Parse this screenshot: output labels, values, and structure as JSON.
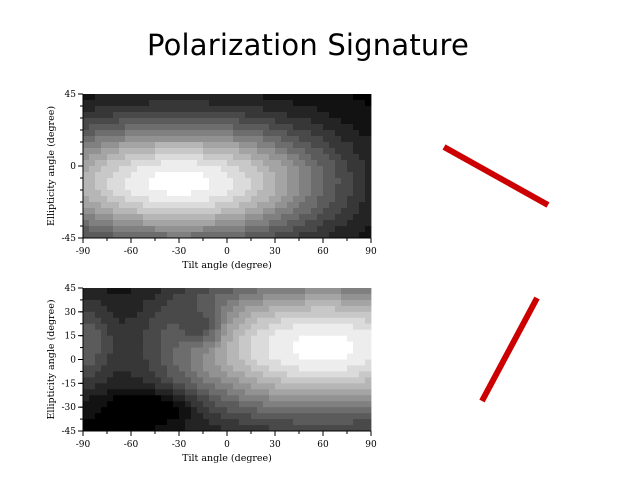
{
  "slide": {
    "title": "Polarization Signature"
  },
  "colors": {
    "line_accent": "#cc0000",
    "axis": "#000000",
    "background": "#ffffff"
  },
  "chart_data": [
    {
      "type": "heatmap",
      "title": "",
      "xlabel": "Tilt angle (degree)",
      "ylabel": "Ellipticity angle (degree)",
      "xlim": [
        -90,
        90
      ],
      "ylim": [
        -45,
        45
      ],
      "xticks": [
        "-90",
        "-60",
        "-30",
        "0",
        "30",
        "60",
        "90"
      ],
      "yticks": [
        "-45",
        "0",
        "45"
      ],
      "colormap": "grayscale",
      "peaks": [
        {
          "x": -30,
          "y": -10,
          "value": 1.0
        },
        {
          "x": 60,
          "y": -10,
          "value": 0.0
        }
      ]
    },
    {
      "type": "heatmap",
      "title": "",
      "xlabel": "Tilt angle (degree)",
      "ylabel": "Ellipticity angle (degree)",
      "xlim": [
        -90,
        90
      ],
      "ylim": [
        -45,
        45
      ],
      "xticks": [
        "-90",
        "-60",
        "-30",
        "0",
        "30",
        "60",
        "90"
      ],
      "yticks": [
        "-45",
        "-30",
        "-15",
        "0",
        "15",
        "30",
        "45"
      ],
      "colormap": "grayscale",
      "peaks": [
        {
          "x": 60,
          "y": 8,
          "value": 1.0
        },
        {
          "x": -15,
          "y": 20,
          "value": 0.0
        },
        {
          "x": -45,
          "y": -30,
          "value": 0.0
        }
      ]
    }
  ]
}
